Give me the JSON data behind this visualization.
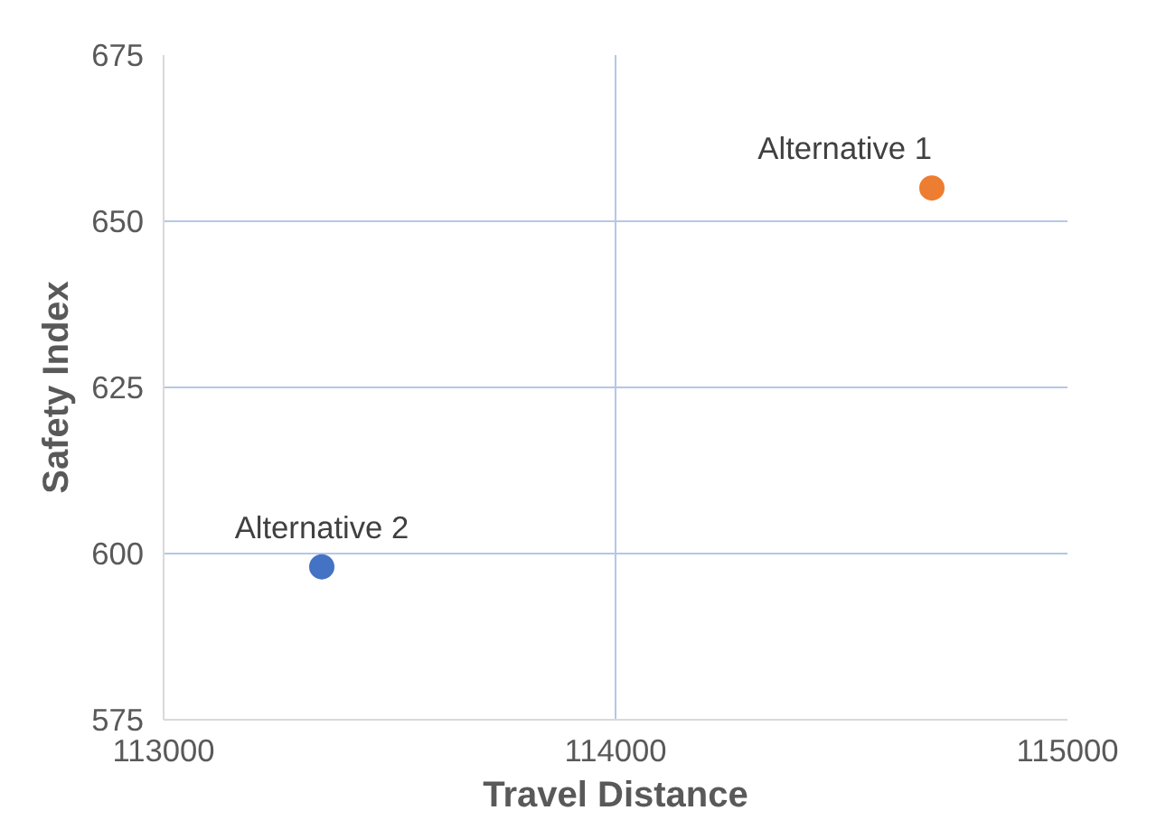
{
  "chart_data": {
    "type": "scatter",
    "xlabel": "Travel Distance",
    "ylabel": "Safety Index",
    "xlim": [
      113000,
      115000
    ],
    "xticks": [
      113000,
      114000,
      115000
    ],
    "ylim": [
      575,
      675
    ],
    "yticks": [
      575,
      600,
      625,
      650,
      675
    ],
    "grid": true,
    "legend": false,
    "marker": "circle",
    "series": [
      {
        "name": "Alternative 1",
        "color": "#ed7d31",
        "x": [
          114700
        ],
        "values": [
          655
        ]
      },
      {
        "name": "Alternative 2",
        "color": "#4472c4",
        "x": [
          113350
        ],
        "values": [
          598
        ]
      }
    ]
  }
}
